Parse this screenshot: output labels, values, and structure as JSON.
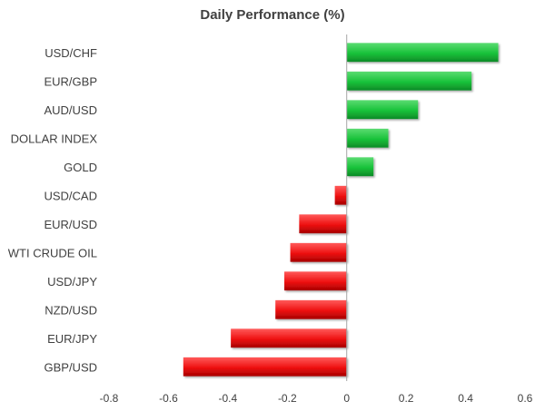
{
  "chart_data": {
    "type": "bar",
    "orientation": "horizontal",
    "title": "Daily Performance (%)",
    "xlabel": "",
    "ylabel": "",
    "categories": [
      "USD/CHF",
      "EUR/GBP",
      "AUD/USD",
      "DOLLAR INDEX",
      "GOLD",
      "USD/CAD",
      "EUR/USD",
      "WTI CRUDE OIL",
      "USD/JPY",
      "NZD/USD",
      "EUR/JPY",
      "GBP/USD"
    ],
    "values": [
      0.51,
      0.42,
      0.24,
      0.14,
      0.09,
      -0.04,
      -0.16,
      -0.19,
      -0.21,
      -0.24,
      -0.39,
      -0.55
    ],
    "xlim": [
      -0.8,
      0.6
    ],
    "x_ticks": [
      "-0.8",
      "-0.6",
      "-0.4",
      "-0.2",
      "0",
      "0.2",
      "0.4",
      "0.6"
    ],
    "grid": false,
    "legend": "none",
    "colors": {
      "positive": "#19c23a",
      "negative": "#ee1111",
      "positive_light": "#5bdc72",
      "negative_light": "#ff5a5a",
      "positive_dark": "#0e8a27",
      "negative_dark": "#a60000",
      "text": "#404040",
      "axis": "#a6a6a6"
    }
  }
}
